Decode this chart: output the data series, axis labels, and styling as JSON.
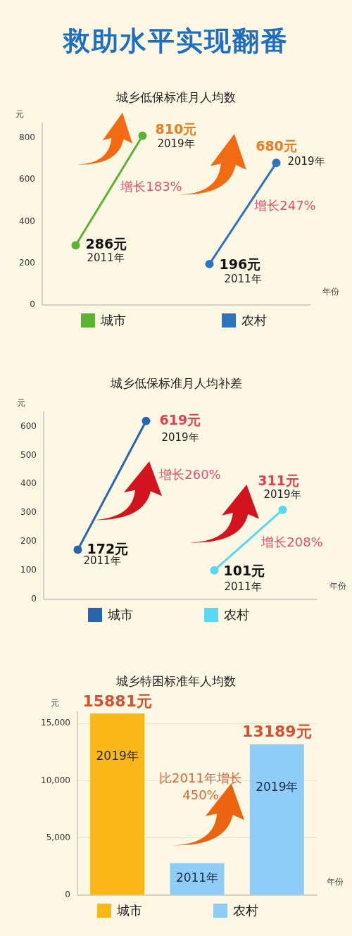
{
  "chart_data": [
    {
      "type": "line",
      "title": "救助水平实现翻番",
      "subtitle": "城乡低保标准月人均数",
      "ylabel": "元",
      "xlabel": "年份",
      "categories": [
        null,
        null,
        null,
        null
      ],
      "series": [
        {
          "name": "城市",
          "color": "#5bb332",
          "values": [
            286,
            810,
            null,
            null
          ],
          "value_labels": [
            "286元",
            "810元",
            null,
            null
          ]
        },
        {
          "name": "农村",
          "color": "#2e73bf",
          "values": [
            null,
            null,
            196,
            680
          ],
          "value_labels": [
            null,
            null,
            "196元",
            "680元"
          ]
        }
      ],
      "ylim": [
        0,
        870
      ],
      "yticks": [
        0,
        200,
        400,
        600,
        800
      ],
      "marker": "circle",
      "legend": "bottom",
      "annotations": [
        "2019年",
        "增长183%",
        "2011年",
        "2019年",
        "增长247%",
        "2011年"
      ]
    },
    {
      "type": "line",
      "title": "城乡低保标准月人均补差",
      "ylabel": "元",
      "xlabel": "年份",
      "categories": [
        null,
        null,
        null,
        null
      ],
      "series": [
        {
          "name": "城市",
          "color": "#2766ae",
          "values": [
            172,
            619,
            null,
            null
          ],
          "value_labels": [
            "172元",
            "619元",
            null,
            null
          ]
        },
        {
          "name": "农村",
          "color": "#57d8f3",
          "values": [
            null,
            null,
            101,
            311
          ],
          "value_labels": [
            null,
            null,
            "101元",
            "311元"
          ]
        }
      ],
      "ylim": [
        0,
        650
      ],
      "yticks": [
        0,
        100,
        200,
        300,
        400,
        500,
        600
      ],
      "marker": "circle",
      "legend": "bottom",
      "annotations": [
        "2019年",
        "增长260%",
        "2011年",
        "2019年",
        "增长208%",
        "2011年"
      ]
    },
    {
      "type": "bar",
      "title": "城乡特困标准年人均数",
      "ylabel": "元",
      "xlabel": "年份",
      "categories": [
        "2019年",
        "2011年",
        "2019年"
      ],
      "series": [
        {
          "name": "城市",
          "color": "#fbb718",
          "values": [
            15881,
            null,
            null
          ],
          "value_labels": [
            "15881元",
            null,
            null
          ]
        },
        {
          "name": "农村",
          "color": "#8ecdf8",
          "values": [
            null,
            2800,
            13189
          ],
          "value_labels": [
            null,
            null,
            "13189元"
          ]
        }
      ],
      "ylim": [
        0,
        16000
      ],
      "yticks": [
        0,
        {
          "value": 5000,
          "label": "5,000"
        },
        {
          "value": 10000,
          "label": "10,000"
        },
        {
          "value": 15000,
          "label": "15,000"
        }
      ],
      "grid": "y",
      "legend": "bottom",
      "annotations": [
        "比2011年增长450%"
      ]
    }
  ]
}
